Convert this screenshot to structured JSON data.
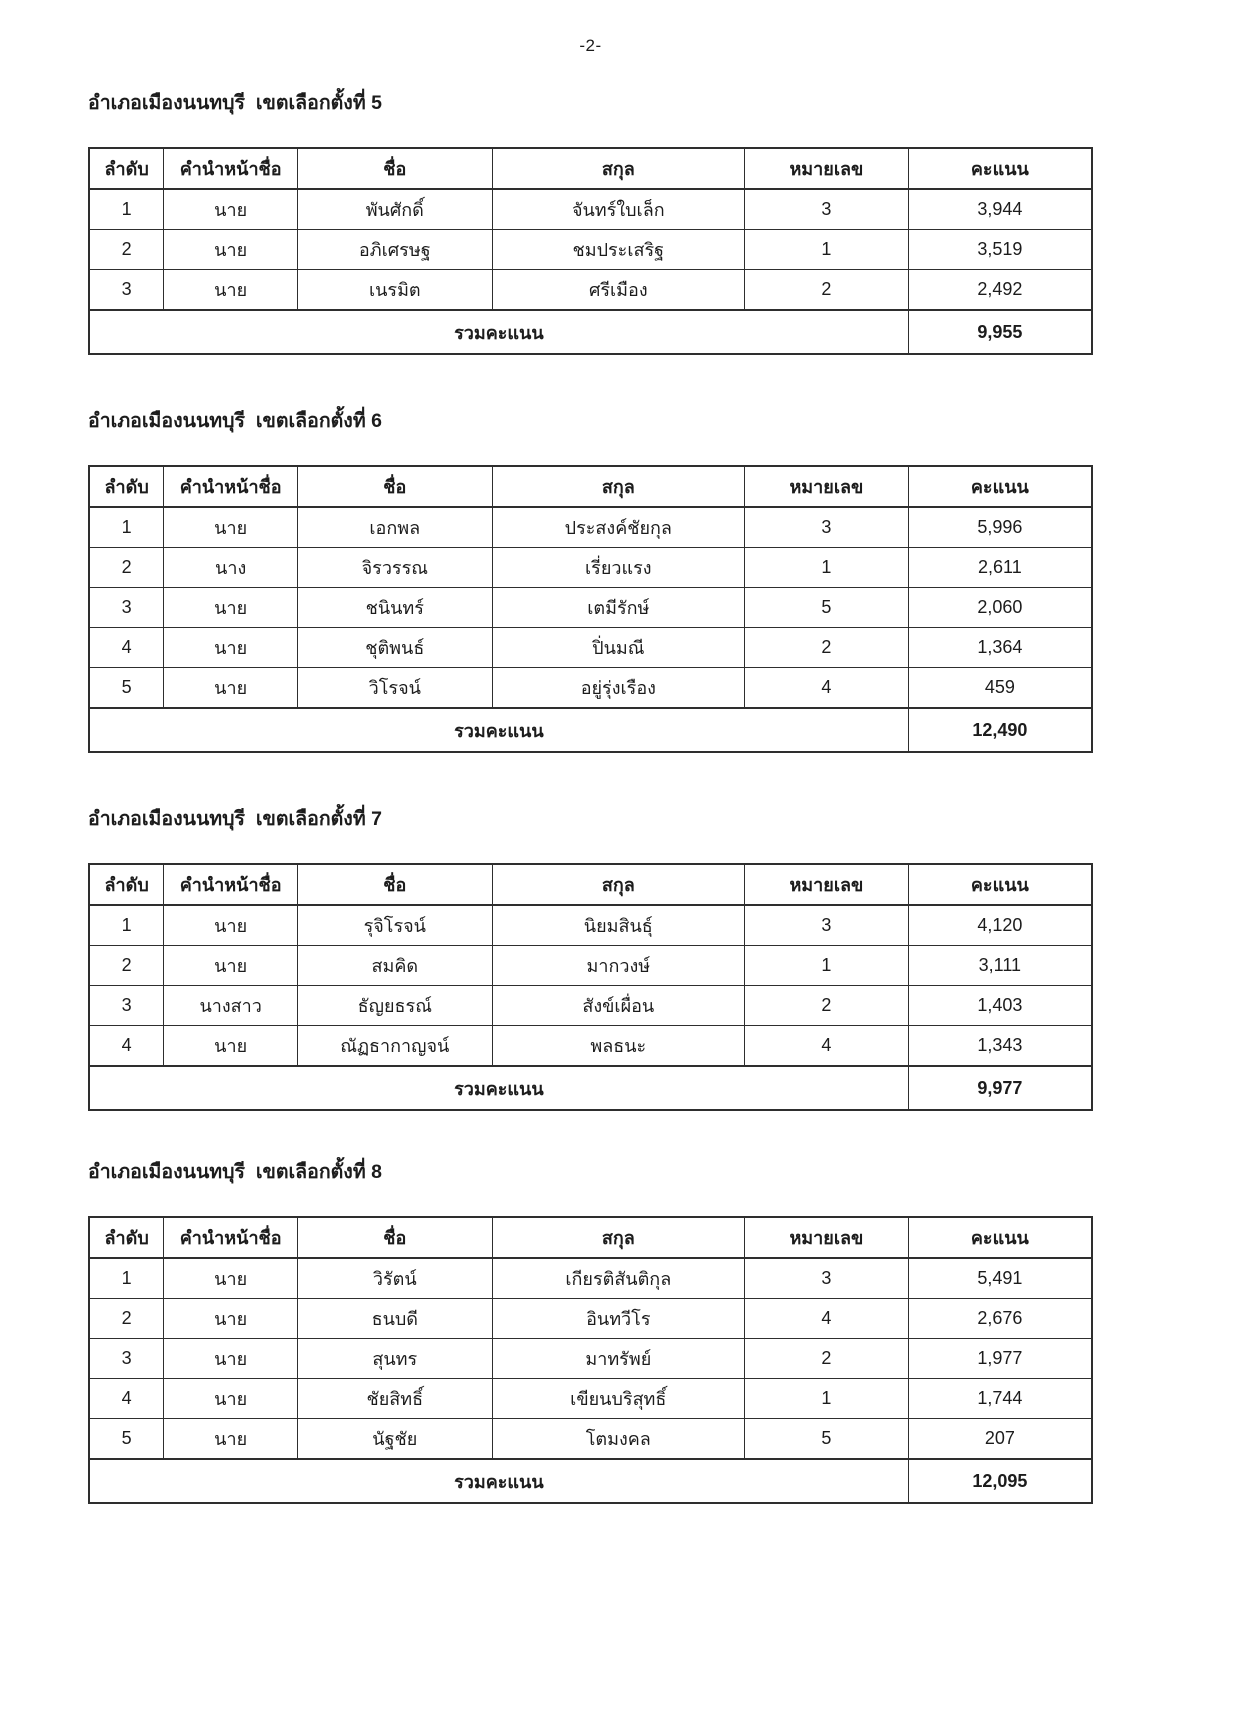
{
  "page": {
    "number_label": "-2-"
  },
  "table": {
    "columns": [
      "ลำดับ",
      "คำนำหน้าชื่อ",
      "ชื่อ",
      "สกุล",
      "หมายเลข",
      "คะแนน"
    ],
    "total_label": "รวมคะแนน"
  },
  "sections": [
    {
      "title": "อำเภอเมืองนนทบุรี  เขตเลือกตั้งที่ 5",
      "rows": [
        {
          "no": "1",
          "prefix": "นาย",
          "first_name": "พันศักดิ์",
          "last_name": "จันทร์ใบเล็ก",
          "number": "3",
          "votes": "3,944"
        },
        {
          "no": "2",
          "prefix": "นาย",
          "first_name": "อภิเศรษฐ",
          "last_name": "ชมประเสริฐ",
          "number": "1",
          "votes": "3,519"
        },
        {
          "no": "3",
          "prefix": "นาย",
          "first_name": "เนรมิต",
          "last_name": "ศรีเมือง",
          "number": "2",
          "votes": "2,492"
        }
      ],
      "total_votes": "9,955"
    },
    {
      "title": "อำเภอเมืองนนทบุรี  เขตเลือกตั้งที่ 6",
      "rows": [
        {
          "no": "1",
          "prefix": "นาย",
          "first_name": "เอกพล",
          "last_name": "ประสงค์ชัยกุล",
          "number": "3",
          "votes": "5,996"
        },
        {
          "no": "2",
          "prefix": "นาง",
          "first_name": "จิรวรรณ",
          "last_name": "เรี่ยวแรง",
          "number": "1",
          "votes": "2,611"
        },
        {
          "no": "3",
          "prefix": "นาย",
          "first_name": "ชนินทร์",
          "last_name": "เตมีรักษ์",
          "number": "5",
          "votes": "2,060"
        },
        {
          "no": "4",
          "prefix": "นาย",
          "first_name": "ชุติพนธ์",
          "last_name": "ปิ่นมณี",
          "number": "2",
          "votes": "1,364"
        },
        {
          "no": "5",
          "prefix": "นาย",
          "first_name": "วิโรจน์",
          "last_name": "อยู่รุ่งเรือง",
          "number": "4",
          "votes": "459"
        }
      ],
      "total_votes": "12,490"
    },
    {
      "title": "อำเภอเมืองนนทบุรี  เขตเลือกตั้งที่ 7",
      "rows": [
        {
          "no": "1",
          "prefix": "นาย",
          "first_name": "รุจิโรจน์",
          "last_name": "นิยมสินธุ์",
          "number": "3",
          "votes": "4,120"
        },
        {
          "no": "2",
          "prefix": "นาย",
          "first_name": "สมคิด",
          "last_name": "มากวงษ์",
          "number": "1",
          "votes": "3,111"
        },
        {
          "no": "3",
          "prefix": "นางสาว",
          "first_name": "ธัญยธรณ์",
          "last_name": "สังข์เผื่อน",
          "number": "2",
          "votes": "1,403"
        },
        {
          "no": "4",
          "prefix": "นาย",
          "first_name": "ณัฏธากาญจน์",
          "last_name": "พลธนะ",
          "number": "4",
          "votes": "1,343"
        }
      ],
      "total_votes": "9,977"
    },
    {
      "title": "อำเภอเมืองนนทบุรี  เขตเลือกตั้งที่ 8",
      "rows": [
        {
          "no": "1",
          "prefix": "นาย",
          "first_name": "วิรัตน์",
          "last_name": "เกียรติสันติกุล",
          "number": "3",
          "votes": "5,491"
        },
        {
          "no": "2",
          "prefix": "นาย",
          "first_name": "ธนบดี",
          "last_name": "อินทวีโร",
          "number": "4",
          "votes": "2,676"
        },
        {
          "no": "3",
          "prefix": "นาย",
          "first_name": "สุนทร",
          "last_name": "มาทรัพย์",
          "number": "2",
          "votes": "1,977"
        },
        {
          "no": "4",
          "prefix": "นาย",
          "first_name": "ชัยสิทธิ์",
          "last_name": "เขียนบริสุทธิ์",
          "number": "1",
          "votes": "1,744"
        },
        {
          "no": "5",
          "prefix": "นาย",
          "first_name": "นัฐชัย",
          "last_name": "โตมงคล",
          "number": "5",
          "votes": "207"
        }
      ],
      "total_votes": "12,095"
    }
  ]
}
